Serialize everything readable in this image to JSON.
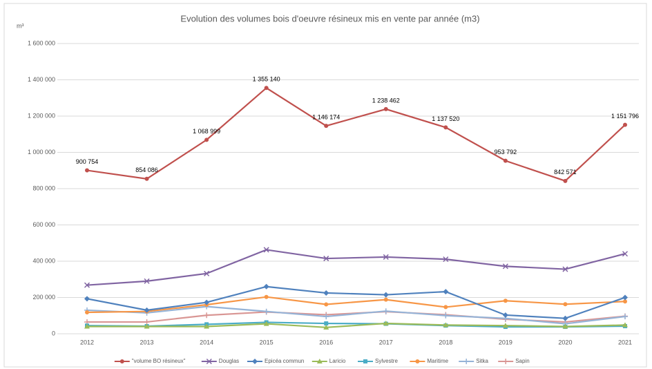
{
  "chart_data": {
    "type": "line",
    "title": "Evolution des volumes bois d'oeuvre résineux mis en vente par année (m3)",
    "y_label": "m³",
    "categories": [
      "2012",
      "2013",
      "2014",
      "2015",
      "2016",
      "2017",
      "2018",
      "2019",
      "2020",
      "2021"
    ],
    "ylim": [
      0,
      1600000
    ],
    "yticks": [
      0,
      {
        "value": 200000,
        "label": "200 000"
      },
      {
        "value": 400000,
        "label": "400 000"
      },
      {
        "value": 600000,
        "label": "600 000"
      },
      {
        "value": 800000,
        "label": "800 000"
      },
      {
        "value": 1000000,
        "label": "1 000 000"
      },
      {
        "value": 1200000,
        "label": "1 200 000"
      },
      {
        "value": 1400000,
        "label": "1 400 000"
      },
      {
        "value": 1600000,
        "label": "1 600 000"
      }
    ],
    "grid": true,
    "legend": "bottom",
    "series": [
      {
        "name": "\"volume BO résineux\"",
        "color": "#c0504d",
        "marker": "circle",
        "values": [
          900754,
          854086,
          1068999,
          1355140,
          1146174,
          1238462,
          1137520,
          953792,
          842571,
          1151796
        ],
        "value_labels": [
          "900 754",
          "854 086",
          "1 068 999",
          "1 355 140",
          "1 146 174",
          "1 238 462",
          "1 137 520",
          "953 792",
          "842 571",
          "1 151 796"
        ]
      },
      {
        "name": "Douglas",
        "color": "#8064a2",
        "marker": "x",
        "values": [
          268000,
          290000,
          332000,
          463000,
          415000,
          423000,
          411000,
          372000,
          356000,
          441000
        ]
      },
      {
        "name": "Epicéa commun",
        "color": "#4f81bd",
        "marker": "diamond",
        "values": [
          193000,
          130000,
          173000,
          260000,
          225000,
          215000,
          232000,
          103000,
          85000,
          200000
        ]
      },
      {
        "name": "Laricio",
        "color": "#9bbb59",
        "marker": "triangle",
        "values": [
          40000,
          40000,
          40000,
          55000,
          35000,
          57000,
          48000,
          45000,
          40000,
          48000
        ]
      },
      {
        "name": "Sylvestre",
        "color": "#4bacc6",
        "marker": "square",
        "values": [
          45000,
          42000,
          52000,
          63000,
          57000,
          55000,
          45000,
          38000,
          38000,
          42000
        ]
      },
      {
        "name": "Maritime",
        "color": "#f79646",
        "marker": "circle",
        "values": [
          118000,
          123000,
          160000,
          203000,
          162000,
          188000,
          147000,
          182000,
          163000,
          178000
        ]
      },
      {
        "name": "Sitka",
        "color": "#95b3d7",
        "marker": "plus",
        "values": [
          130000,
          115000,
          150000,
          123000,
          95000,
          125000,
          100000,
          85000,
          55000,
          95000
        ]
      },
      {
        "name": "Sapin",
        "color": "#d99694",
        "marker": "plus",
        "values": [
          65000,
          65000,
          102000,
          120000,
          105000,
          122000,
          105000,
          80000,
          65000,
          97000
        ]
      }
    ]
  }
}
